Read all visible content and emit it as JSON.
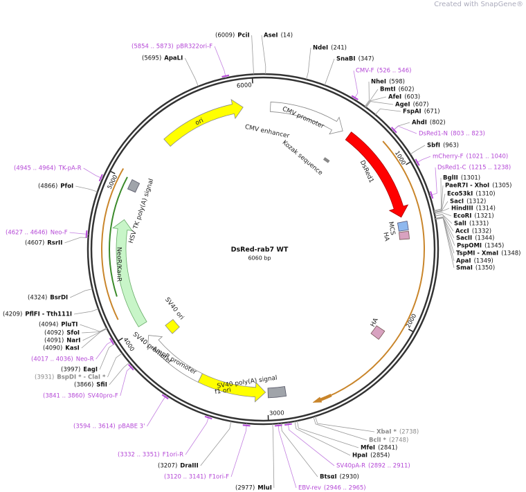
{
  "header": {
    "watermark": "Created with SnapGene®"
  },
  "plasmid": {
    "name": "DsRed-rab7 WT",
    "size": "6060 bp",
    "ticks": [
      "1000",
      "2000",
      "3000",
      "4000",
      "5000",
      "6000"
    ]
  },
  "features": [
    "ori",
    "CMV enhancer",
    "CMV promoter",
    "Kozak sequence",
    "DsRed1",
    "MCS",
    "HA",
    "HA",
    "SV40 poly(A) signal",
    "f1 ori",
    "AmpR promoter",
    "SV40 promoter",
    "SV40 ori",
    "NeoR/KanR",
    "HSV TK poly(A) signal"
  ],
  "sites": [
    {
      "name": "AseI",
      "position": "(14)"
    },
    {
      "name": "NdeI",
      "position": "(241)"
    },
    {
      "name": "SnaBI",
      "position": "(347)"
    },
    {
      "name": "NheI",
      "position": "(598)"
    },
    {
      "name": "BmtI",
      "position": "(602)"
    },
    {
      "name": "AfeI",
      "position": "(603)"
    },
    {
      "name": "AgeI",
      "position": "(607)"
    },
    {
      "name": "FspAI",
      "position": "(671)"
    },
    {
      "name": "AhdI",
      "position": "(802)"
    },
    {
      "name": "SbfI",
      "position": "(963)"
    },
    {
      "name": "BglII",
      "position": "(1301)"
    },
    {
      "name": "PaeR7I - XhoI",
      "position": "(1305)"
    },
    {
      "name": "Eco53kI",
      "position": "(1310)"
    },
    {
      "name": "SacI",
      "position": "(1312)"
    },
    {
      "name": "HindIII",
      "position": "(1314)"
    },
    {
      "name": "EcoRI",
      "position": "(1321)"
    },
    {
      "name": "SalI",
      "position": "(1331)"
    },
    {
      "name": "AccI",
      "position": "(1332)"
    },
    {
      "name": "SacII",
      "position": "(1344)"
    },
    {
      "name": "PspOMI",
      "position": "(1345)"
    },
    {
      "name": "TspMI - XmaI",
      "position": "(1348)"
    },
    {
      "name": "ApaI",
      "position": "(1349)"
    },
    {
      "name": "SmaI",
      "position": "(1350)"
    },
    {
      "name": "MfeI",
      "position": "(2841)"
    },
    {
      "name": "HpaI",
      "position": "(2854)"
    },
    {
      "name": "BtsαI",
      "position": "(2930)"
    },
    {
      "name": "MluI",
      "position": "(2977)"
    },
    {
      "name": "DraIII",
      "position": "(3207)"
    },
    {
      "name": "SfiI",
      "position": "(3866)"
    },
    {
      "name": "EagI",
      "position": "(3997)"
    },
    {
      "name": "KasI",
      "position": "(4090)"
    },
    {
      "name": "NarI",
      "position": "(4091)"
    },
    {
      "name": "SfoI",
      "position": "(4092)"
    },
    {
      "name": "PluTI",
      "position": "(4094)"
    },
    {
      "name": "PflFI - Tth111I",
      "position": "(4209)"
    },
    {
      "name": "BsrDI",
      "position": "(4324)"
    },
    {
      "name": "RsrII",
      "position": "(4607)"
    },
    {
      "name": "PfoI",
      "position": "(4866)"
    },
    {
      "name": "ApaLI",
      "position": "(5695)"
    },
    {
      "name": "PciI",
      "position": "(6009)"
    }
  ],
  "blocked_sites": [
    {
      "name": "XbaI *",
      "position": "(2738)"
    },
    {
      "name": "BclI *",
      "position": "(2748)"
    },
    {
      "name": "BspDI * - ClaI *",
      "position": "(3931)"
    }
  ],
  "primers": [
    {
      "name": "CMV-F",
      "range": "(526 .. 546)"
    },
    {
      "name": "DsRed1-N",
      "range": "(803 .. 823)"
    },
    {
      "name": "mCherry-F",
      "range": "(1021 .. 1040)"
    },
    {
      "name": "DsRed1-C",
      "range": "(1215 .. 1238)"
    },
    {
      "name": "SV40pA-R",
      "range": "(2892 .. 2911)"
    },
    {
      "name": "EBV-rev",
      "range": "(2946 .. 2965)"
    },
    {
      "name": "F1ori-F",
      "range": "(3120 .. 3141)"
    },
    {
      "name": "F1ori-R",
      "range": "(3332 .. 3351)"
    },
    {
      "name": "pBABE 3'",
      "range": "(3594 .. 3614)"
    },
    {
      "name": "SV40pro-F",
      "range": "(3841 .. 3860)"
    },
    {
      "name": "Neo-R",
      "range": "(4017 .. 4036)"
    },
    {
      "name": "Neo-F",
      "range": "(4627 .. 4646)"
    },
    {
      "name": "TK-pA-R",
      "range": "(4945 .. 4964)"
    },
    {
      "name": "pBR322ori-F",
      "range": "(5854 .. 5873)"
    }
  ]
}
